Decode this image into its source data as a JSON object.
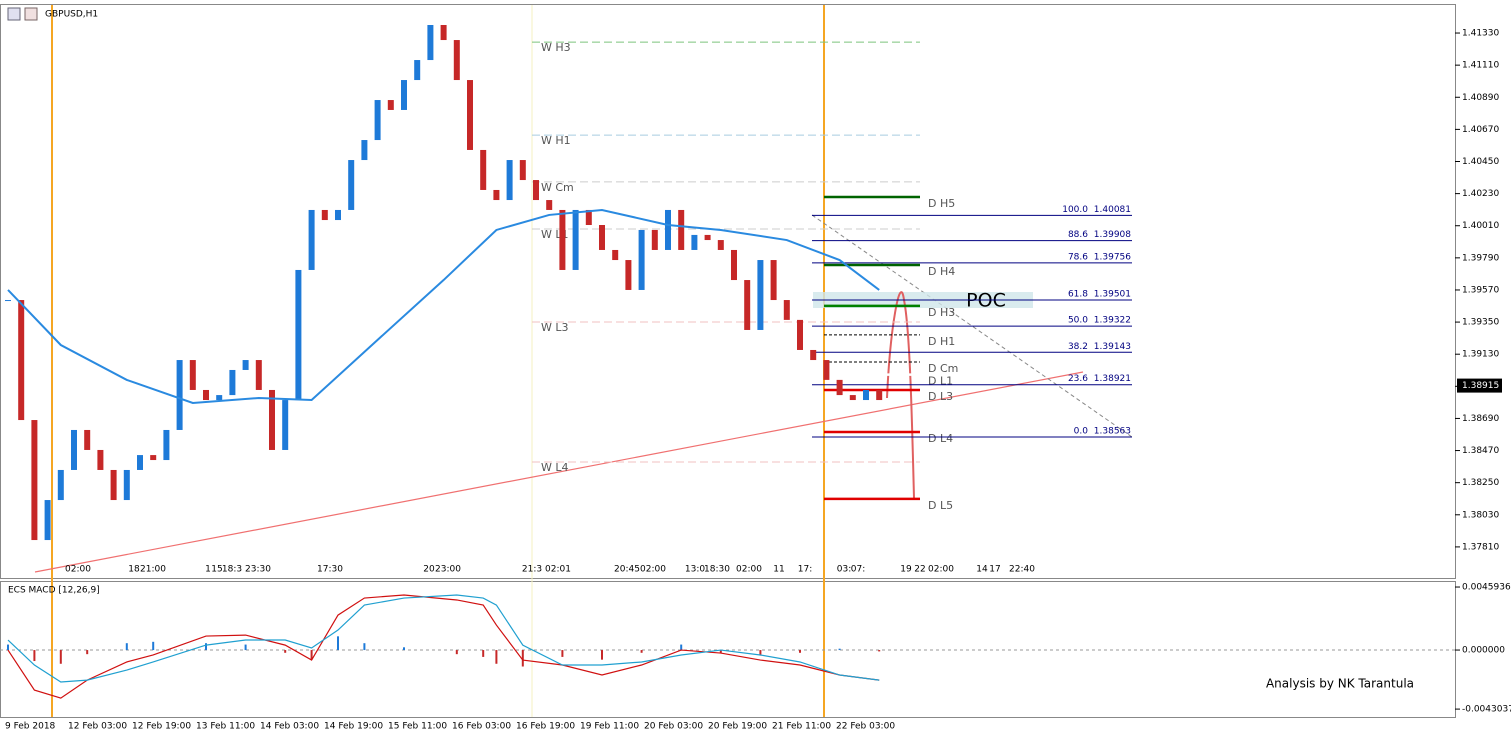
{
  "chart_data": [
    {
      "type": "candlestick",
      "title": "GBPUSD,H1",
      "closes": [
        1.39501,
        1.38679,
        1.37857,
        1.38131,
        1.38337,
        1.38611,
        1.38474,
        1.38337,
        1.38131,
        1.38337,
        1.38439,
        1.38405,
        1.38611,
        1.3909,
        1.38885,
        1.38816,
        1.3885,
        1.39022,
        1.3909,
        1.38885,
        1.38474,
        1.38816,
        1.39707,
        1.40118,
        1.40049,
        1.40118,
        1.4046,
        1.40597,
        1.40871,
        1.40803,
        1.41008,
        1.41145,
        1.41385,
        1.41282,
        1.41008,
        1.40529,
        1.40255,
        1.40186,
        1.4046,
        1.40323,
        1.40186,
        1.40118,
        1.39707,
        1.40118,
        1.40015,
        1.39844,
        1.39775,
        1.3957,
        1.39981,
        1.39844,
        1.40118,
        1.39844,
        1.39947,
        1.39912,
        1.39844,
        1.39638,
        1.39296,
        1.39775,
        1.39501,
        1.39365,
        1.39159,
        1.3909,
        1.38954,
        1.3885,
        1.38816,
        1.38885,
        1.38816
      ],
      "ma": {
        "x": [
          0,
          4,
          9,
          14,
          19,
          23,
          28,
          33,
          37,
          41,
          45,
          50,
          54,
          59,
          63,
          66
        ],
        "values": [
          1.3957,
          1.39193,
          1.38954,
          1.38796,
          1.3883,
          1.38816,
          1.39228,
          1.39638,
          1.39981,
          1.40084,
          1.40118,
          1.40015,
          1.39981,
          1.39912,
          1.39775,
          1.3957
        ]
      },
      "ylim": [
        1.37597,
        1.41522
      ],
      "yticks": [
        {
          "value": 1.4133,
          "label": "1.41330"
        },
        {
          "value": 1.4111,
          "label": "1.41110"
        },
        {
          "value": 1.4089,
          "label": "1.40890"
        },
        {
          "value": 1.4067,
          "label": "1.40670"
        },
        {
          "value": 1.4045,
          "label": "1.40450"
        },
        {
          "value": 1.4023,
          "label": "1.40230"
        },
        {
          "value": 1.4001,
          "label": "1.40010"
        },
        {
          "value": 1.3979,
          "label": "1.39790"
        },
        {
          "value": 1.3957,
          "label": "1.39570"
        },
        {
          "value": 1.3935,
          "label": "1.39350"
        },
        {
          "value": 1.3913,
          "label": "1.39130"
        },
        {
          "value": 1.3891,
          "label": "1.38910"
        },
        {
          "value": 1.3869,
          "label": "1.38690"
        },
        {
          "value": 1.3847,
          "label": "1.38470"
        },
        {
          "value": 1.3825,
          "label": "1.38250"
        },
        {
          "value": 1.3803,
          "label": "1.38030"
        },
        {
          "value": 1.3781,
          "label": "1.37810"
        }
      ],
      "current_price": 1.38915,
      "fibonacci": [
        {
          "level": {
            "value": 100,
            "label": "100.0"
          },
          "price": 1.40081
        },
        {
          "level": 88.6,
          "price": 1.39908
        },
        {
          "level": 78.6,
          "price": 1.39756
        },
        {
          "level": 61.8,
          "price": 1.39501
        },
        {
          "level": {
            "value": 50,
            "label": "50.0"
          },
          "price": 1.39322
        },
        {
          "level": 38.2,
          "price": 1.39143
        },
        {
          "level": 23.6,
          "price": 1.38921
        },
        {
          "level": {
            "value": 0,
            "label": "0.0"
          },
          "price": 1.38563
        }
      ],
      "daily_pivots": [
        {
          "label": "D H5",
          "value": 1.40207,
          "color": "#006400"
        },
        {
          "label": "D H4",
          "value": 1.39741,
          "color": "#006400"
        },
        {
          "label": "D H3",
          "value": 1.39461,
          "color": "#008000"
        },
        {
          "label": "D H1",
          "value": 1.39262,
          "color": "#000"
        },
        {
          "label": "D Cm",
          "value": 1.39077,
          "color": "#000"
        },
        {
          "label": "D L1",
          "value": 1.3899,
          "color": "#fff"
        },
        {
          "label": "D L3",
          "value": 1.38885,
          "color": "#e00000"
        },
        {
          "label": "D L4",
          "value": 1.38597,
          "color": "#e00000"
        },
        {
          "label": "D L5",
          "value": 1.38139,
          "color": "#e00000"
        }
      ],
      "weekly_pivots": [
        {
          "label": "W H3",
          "value": 1.41268,
          "color": "#7cc47c"
        },
        {
          "label": "W H1",
          "value": 1.40631,
          "color": "#a8cce0"
        },
        {
          "label": "W Cm",
          "value": 1.4031,
          "color": "#ccc"
        },
        {
          "label": "W L1",
          "value": 1.39988,
          "color": "#ccc"
        },
        {
          "label": "W L3",
          "value": 1.39351,
          "color": "#f0c0c0"
        },
        {
          "label": "W L4",
          "value": 1.38392,
          "color": "#f0c0c0"
        }
      ],
      "poc": "POC",
      "session_labels": [
        "02:00",
        "18",
        "21:00",
        "1",
        "15",
        "18:3",
        "23:30",
        "17:30",
        "20",
        "23:00",
        "21:3",
        "02:01",
        "20:45",
        "02:00",
        "13:0",
        "18:30",
        "02:00",
        "11",
        "17:",
        "03:",
        "07:",
        "19",
        "22",
        "02:00",
        "14",
        "17",
        "22:40"
      ]
    },
    {
      "type": "macd",
      "title": "ECS MACD [12,26,9]",
      "x": [
        0,
        2,
        4,
        6,
        9,
        11,
        15,
        18,
        21,
        23,
        25,
        27,
        30,
        34,
        36,
        37,
        39,
        42,
        45,
        48,
        51,
        54,
        57,
        60,
        63,
        66
      ],
      "macd": [
        0,
        -0.00292,
        -0.0035,
        -0.00219,
        -0.00087,
        -0.00036,
        0.00102,
        0.00109,
        0.00036,
        -0.00073,
        0.00255,
        0.00379,
        0.00401,
        0.00365,
        0.00328,
        0.00182,
        -0.00073,
        -0.00109,
        -0.00182,
        -0.00109,
        0,
        -0.00022,
        -0.00073,
        -0.00109,
        -0.00182,
        -0.00219
      ],
      "signal": [
        0.00073,
        -0.00109,
        -0.00233,
        -0.00219,
        -0.00146,
        -0.00087,
        0.00036,
        0.00073,
        0.00073,
        0.00015,
        0.00146,
        0.00328,
        0.00379,
        0.00401,
        0.00379,
        0.00328,
        0.00036,
        -0.00109,
        -0.00109,
        -0.00087,
        -0.00036,
        0,
        -0.00036,
        -0.00087,
        -0.00182,
        -0.00219
      ],
      "histogram": [
        0.0004,
        -0.0008,
        -0.001,
        -0.0003,
        0.0005,
        0.0006,
        0.0005,
        0.0004,
        -0.0002,
        -0.0007,
        0.001,
        0.0005,
        0.0002,
        -0.0003,
        -0.0005,
        -0.001,
        -0.0012,
        -0.0005,
        -0.0007,
        -0.0002,
        0.0004,
        -0.0002,
        -0.0004,
        -0.0002,
        0.0001,
        -0.0001
      ],
      "ylim": [
        -0.00488,
        0.00496
      ],
      "yticks": [
        0.0045936,
        {
          "value": 0,
          "label": "0.000000"
        },
        -0.0043037
      ]
    }
  ],
  "time_axis": [
    "9 Feb 2018",
    "12 Feb 03:00",
    "12 Feb 19:00",
    "13 Feb 11:00",
    "14 Feb 03:00",
    "14 Feb 19:00",
    "15 Feb 11:00",
    "16 Feb 03:00",
    "16 Feb 19:00",
    "19 Feb 11:00",
    "20 Feb 03:00",
    "20 Feb 19:00",
    "21 Feb 11:00",
    "22 Feb 03:00"
  ],
  "footer": "Analysis by NK Tarantula"
}
